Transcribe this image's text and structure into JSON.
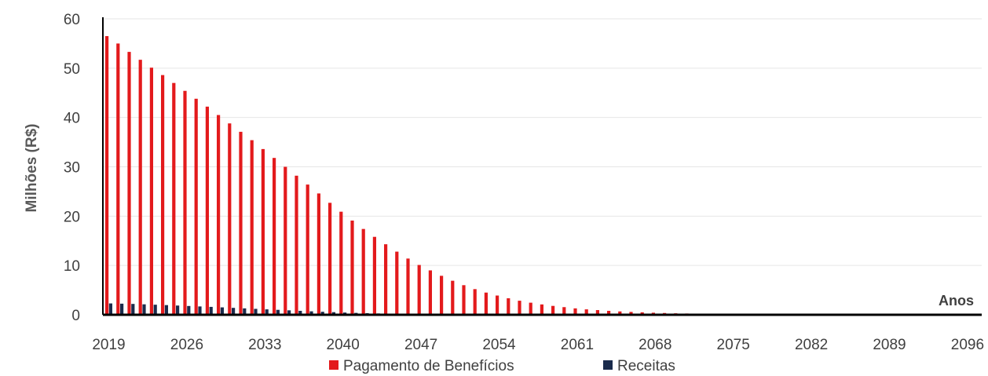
{
  "chart_data": {
    "type": "bar",
    "title": "",
    "xlabel": "Anos",
    "ylabel": "Milhões (R$)",
    "ylim": [
      0,
      60
    ],
    "yticks": [
      0,
      10,
      20,
      30,
      40,
      50,
      60
    ],
    "x_start": 2019,
    "x_end": 2098,
    "xtick_labels": [
      "2019",
      "2026",
      "2033",
      "2040",
      "2047",
      "2054",
      "2061",
      "2068",
      "2075",
      "2082",
      "2089",
      "2096"
    ],
    "grid": true,
    "legend_position": "bottom",
    "colors": {
      "benefits": "#e31a1c",
      "revenue": "#1a2b4c"
    },
    "series": [
      {
        "name": "Pagamento de Benefícios",
        "values": [
          56.5,
          55,
          53.3,
          51.7,
          50.1,
          48.6,
          47,
          45.4,
          43.8,
          42.2,
          40.5,
          38.8,
          37.1,
          35.4,
          33.6,
          31.8,
          30,
          28.2,
          26.4,
          24.6,
          22.7,
          20.9,
          19.1,
          17.4,
          15.8,
          14.3,
          12.8,
          11.4,
          10.1,
          9,
          7.9,
          6.9,
          6,
          5.2,
          4.5,
          3.9,
          3.35,
          2.85,
          2.45,
          2.1,
          1.8,
          1.55,
          1.3,
          1.1,
          0.95,
          0.8,
          0.68,
          0.58,
          0.5,
          0.42,
          0.36,
          0.3,
          0.26,
          0.22,
          0.19,
          0.16,
          0.13,
          0.11,
          0.09,
          0.08,
          0.07,
          0.06,
          0.05,
          0.04,
          0.03,
          0.03,
          0.02,
          0.02,
          0.01,
          0.01,
          0.01,
          0.01,
          0,
          0,
          0,
          0,
          0,
          0,
          0,
          0
        ]
      },
      {
        "name": "Receitas",
        "values": [
          2.3,
          2.25,
          2.2,
          2.12,
          2.04,
          1.96,
          1.87,
          1.78,
          1.69,
          1.6,
          1.5,
          1.4,
          1.3,
          1.2,
          1.1,
          1,
          0.9,
          0.8,
          0.7,
          0.61,
          0.53,
          0.45,
          0.38,
          0.32,
          0.27,
          0.22,
          0.18,
          0.15,
          0.12,
          0.1,
          0.08,
          0.06,
          0.05,
          0.04,
          0.03,
          0.02,
          0.02,
          0.01,
          0.01,
          0.01,
          0,
          0,
          0,
          0,
          0,
          0,
          0,
          0,
          0,
          0,
          0,
          0,
          0,
          0,
          0,
          0,
          0,
          0,
          0,
          0,
          0,
          0,
          0,
          0,
          0,
          0,
          0,
          0,
          0,
          0,
          0,
          0,
          0,
          0,
          0,
          0,
          0,
          0,
          0,
          0
        ]
      }
    ]
  }
}
